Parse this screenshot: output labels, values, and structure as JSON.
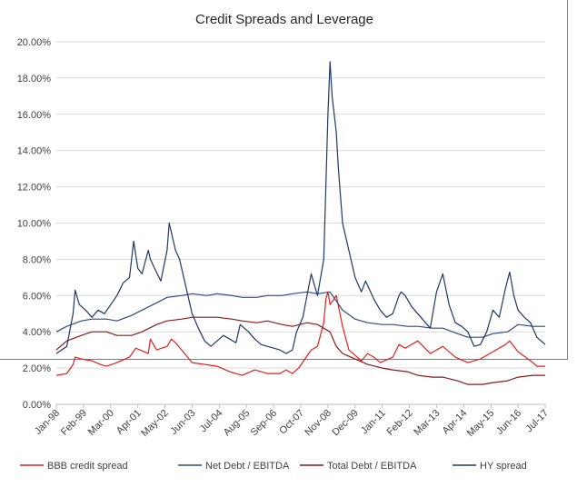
{
  "chart_data": {
    "type": "line",
    "title": "Credit Spreads and Leverage",
    "xlabel": "",
    "ylabel": "",
    "ylim": [
      0,
      0.2
    ],
    "yticks": [
      "0.00%",
      "2.00%",
      "4.00%",
      "6.00%",
      "8.00%",
      "10.00%",
      "12.00%",
      "14.00%",
      "16.00%",
      "18.00%",
      "20.00%"
    ],
    "xticks": [
      "Jan-98",
      "Feb-99",
      "Mar-00",
      "Apr-01",
      "May-02",
      "Jun-03",
      "Jul-04",
      "Aug-05",
      "Sep-06",
      "Oct-07",
      "Nov-08",
      "Dec-09",
      "Jan-11",
      "Feb-12",
      "Mar-13",
      "Apr-14",
      "May-15",
      "Jun-16",
      "Jul-17"
    ],
    "grid": true,
    "legend_position": "bottom",
    "x_unit": "date",
    "x_range": [
      "1998-01",
      "2017-07"
    ],
    "series": [
      {
        "name": "BBB credit spread",
        "color": "#e02020",
        "x": [
          "1998-01",
          "1998-06",
          "1998-09",
          "1998-10",
          "1999-01",
          "1999-06",
          "1999-10",
          "2000-01",
          "2000-06",
          "2000-12",
          "2001-03",
          "2001-09",
          "2001-10",
          "2002-01",
          "2002-06",
          "2002-08",
          "2002-10",
          "2003-01",
          "2003-06",
          "2003-12",
          "2004-06",
          "2004-12",
          "2005-06",
          "2005-12",
          "2006-06",
          "2006-12",
          "2007-03",
          "2007-06",
          "2007-09",
          "2007-12",
          "2008-03",
          "2008-06",
          "2008-09",
          "2008-10",
          "2008-11",
          "2008-12",
          "2009-03",
          "2009-06",
          "2009-09",
          "2009-12",
          "2010-03",
          "2010-06",
          "2010-09",
          "2010-12",
          "2011-06",
          "2011-09",
          "2011-12",
          "2012-06",
          "2012-12",
          "2013-06",
          "2013-12",
          "2014-06",
          "2014-12",
          "2015-06",
          "2015-12",
          "2016-02",
          "2016-06",
          "2016-12",
          "2017-03",
          "2017-07"
        ],
        "values": [
          0.016,
          0.017,
          0.022,
          0.026,
          0.025,
          0.024,
          0.022,
          0.021,
          0.023,
          0.026,
          0.031,
          0.028,
          0.036,
          0.03,
          0.032,
          0.036,
          0.034,
          0.03,
          0.023,
          0.022,
          0.021,
          0.018,
          0.016,
          0.019,
          0.017,
          0.017,
          0.019,
          0.017,
          0.02,
          0.025,
          0.03,
          0.032,
          0.045,
          0.058,
          0.062,
          0.055,
          0.06,
          0.043,
          0.03,
          0.027,
          0.024,
          0.028,
          0.026,
          0.023,
          0.026,
          0.033,
          0.031,
          0.035,
          0.028,
          0.032,
          0.026,
          0.023,
          0.025,
          0.029,
          0.033,
          0.035,
          0.029,
          0.024,
          0.021,
          0.021
        ]
      },
      {
        "name": "Net Debt / EBITDA",
        "color": "#2e4a82",
        "x": [
          "1998-01",
          "1998-06",
          "1999-01",
          "1999-06",
          "2000-01",
          "2000-06",
          "2001-01",
          "2001-06",
          "2002-01",
          "2002-06",
          "2003-01",
          "2003-06",
          "2004-01",
          "2004-06",
          "2005-01",
          "2005-06",
          "2006-01",
          "2006-06",
          "2007-01",
          "2007-06",
          "2008-01",
          "2008-06",
          "2008-12",
          "2009-03",
          "2009-06",
          "2009-12",
          "2010-06",
          "2011-01",
          "2011-06",
          "2012-01",
          "2012-06",
          "2013-01",
          "2013-06",
          "2014-01",
          "2014-06",
          "2015-01",
          "2015-06",
          "2016-01",
          "2016-06",
          "2017-01",
          "2017-07"
        ],
        "values": [
          0.04,
          0.043,
          0.046,
          0.047,
          0.047,
          0.046,
          0.049,
          0.052,
          0.056,
          0.059,
          0.06,
          0.061,
          0.06,
          0.061,
          0.06,
          0.059,
          0.059,
          0.06,
          0.06,
          0.061,
          0.062,
          0.061,
          0.062,
          0.057,
          0.052,
          0.047,
          0.045,
          0.044,
          0.044,
          0.043,
          0.043,
          0.042,
          0.042,
          0.039,
          0.037,
          0.037,
          0.039,
          0.04,
          0.044,
          0.043,
          0.043
        ]
      },
      {
        "name": "Total Debt / EBITDA",
        "color": "#8b1a1a",
        "x": [
          "1998-01",
          "1998-06",
          "1999-01",
          "1999-06",
          "2000-01",
          "2000-06",
          "2001-01",
          "2001-06",
          "2002-01",
          "2002-06",
          "2003-01",
          "2003-06",
          "2004-01",
          "2004-06",
          "2005-01",
          "2005-06",
          "2006-01",
          "2006-06",
          "2007-01",
          "2007-06",
          "2008-01",
          "2008-06",
          "2008-12",
          "2009-03",
          "2009-06",
          "2009-12",
          "2010-06",
          "2011-01",
          "2011-06",
          "2012-01",
          "2012-06",
          "2013-01",
          "2013-06",
          "2014-01",
          "2014-06",
          "2015-01",
          "2015-06",
          "2016-01",
          "2016-06",
          "2017-01",
          "2017-07"
        ],
        "values": [
          0.03,
          0.035,
          0.038,
          0.04,
          0.04,
          0.038,
          0.038,
          0.04,
          0.044,
          0.046,
          0.047,
          0.048,
          0.048,
          0.048,
          0.047,
          0.046,
          0.045,
          0.046,
          0.044,
          0.043,
          0.045,
          0.044,
          0.04,
          0.032,
          0.028,
          0.025,
          0.022,
          0.02,
          0.019,
          0.018,
          0.016,
          0.015,
          0.015,
          0.013,
          0.011,
          0.011,
          0.012,
          0.013,
          0.015,
          0.016,
          0.016
        ]
      },
      {
        "name": "HY spread",
        "color": "#1f3864",
        "x": [
          "1998-01",
          "1998-06",
          "1998-09",
          "1998-10",
          "1998-12",
          "1999-03",
          "1999-06",
          "1999-09",
          "1999-12",
          "2000-03",
          "2000-06",
          "2000-09",
          "2000-12",
          "2001-02",
          "2001-04",
          "2001-06",
          "2001-09",
          "2001-10",
          "2001-12",
          "2002-03",
          "2002-06",
          "2002-07",
          "2002-09",
          "2002-10",
          "2002-12",
          "2003-03",
          "2003-06",
          "2003-09",
          "2003-12",
          "2004-03",
          "2004-06",
          "2004-09",
          "2004-12",
          "2005-03",
          "2005-05",
          "2005-09",
          "2005-12",
          "2006-03",
          "2006-06",
          "2006-12",
          "2007-03",
          "2007-06",
          "2007-08",
          "2007-11",
          "2008-01",
          "2008-03",
          "2008-06",
          "2008-09",
          "2008-10",
          "2008-11",
          "2008-12",
          "2009-01",
          "2009-02",
          "2009-03",
          "2009-04",
          "2009-06",
          "2009-09",
          "2009-12",
          "2010-03",
          "2010-05",
          "2010-09",
          "2010-12",
          "2011-03",
          "2011-06",
          "2011-09",
          "2011-10",
          "2011-12",
          "2012-03",
          "2012-06",
          "2012-09",
          "2012-12",
          "2013-03",
          "2013-06",
          "2013-09",
          "2013-12",
          "2014-03",
          "2014-06",
          "2014-09",
          "2014-12",
          "2015-03",
          "2015-06",
          "2015-09",
          "2015-12",
          "2016-02",
          "2016-04",
          "2016-06",
          "2016-09",
          "2016-12",
          "2017-03",
          "2017-07"
        ],
        "values": [
          0.028,
          0.032,
          0.05,
          0.063,
          0.055,
          0.052,
          0.048,
          0.052,
          0.05,
          0.055,
          0.06,
          0.067,
          0.07,
          0.09,
          0.075,
          0.072,
          0.085,
          0.08,
          0.075,
          0.068,
          0.085,
          0.1,
          0.09,
          0.085,
          0.08,
          0.065,
          0.05,
          0.042,
          0.035,
          0.032,
          0.035,
          0.038,
          0.036,
          0.034,
          0.044,
          0.04,
          0.036,
          0.033,
          0.032,
          0.03,
          0.028,
          0.03,
          0.04,
          0.048,
          0.06,
          0.072,
          0.06,
          0.08,
          0.12,
          0.16,
          0.189,
          0.17,
          0.16,
          0.15,
          0.13,
          0.1,
          0.085,
          0.07,
          0.062,
          0.068,
          0.058,
          0.052,
          0.048,
          0.05,
          0.06,
          0.062,
          0.06,
          0.054,
          0.05,
          0.046,
          0.042,
          0.062,
          0.072,
          0.055,
          0.045,
          0.043,
          0.04,
          0.032,
          0.033,
          0.04,
          0.052,
          0.048,
          0.064,
          0.073,
          0.06,
          0.052,
          0.048,
          0.045,
          0.037,
          0.033
        ]
      }
    ]
  }
}
